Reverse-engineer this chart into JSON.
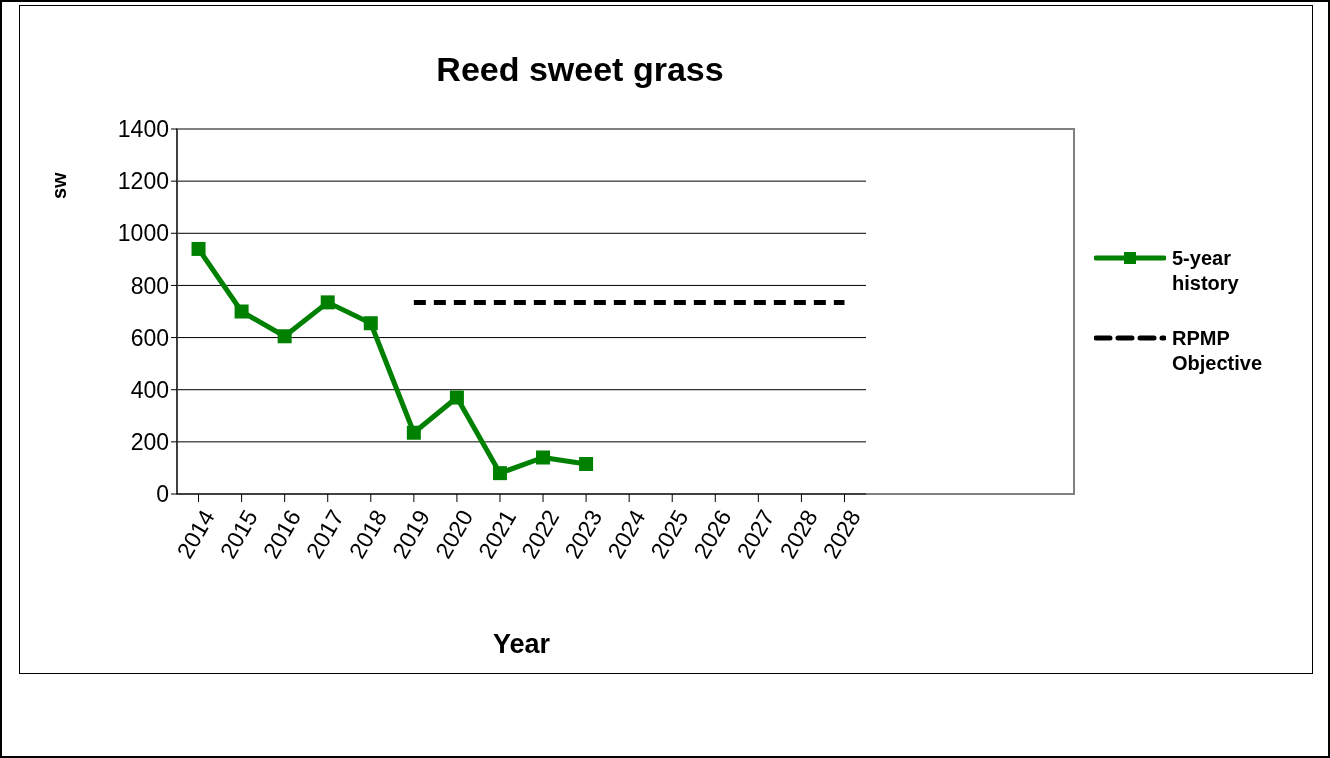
{
  "chart_data": {
    "type": "line",
    "title": "Reed sweet grass",
    "xlabel": "Year",
    "ylabel": "sw",
    "categories": [
      "2014",
      "2015",
      "2016",
      "2017",
      "2018",
      "2019",
      "2020",
      "2021",
      "2022",
      "2023",
      "2024",
      "2025",
      "2026",
      "2027",
      "2028",
      "2028"
    ],
    "series": [
      {
        "name": "5-year history",
        "color": "#008000",
        "marker": "square",
        "line_style": "solid",
        "values": [
          940,
          700,
          605,
          735,
          655,
          235,
          370,
          80,
          140,
          115,
          null,
          null,
          null,
          null,
          null,
          null
        ]
      },
      {
        "name": "RPMP Objective",
        "color": "#000000",
        "marker": "none",
        "line_style": "dashed",
        "values": [
          null,
          null,
          null,
          null,
          null,
          735,
          735,
          735,
          735,
          735,
          735,
          735,
          735,
          735,
          735,
          735
        ]
      }
    ],
    "ylim": [
      0,
      1400
    ],
    "yticks": [
      0,
      200,
      400,
      600,
      800,
      1000,
      1200,
      1400
    ],
    "grid": "y",
    "legend": "right"
  }
}
